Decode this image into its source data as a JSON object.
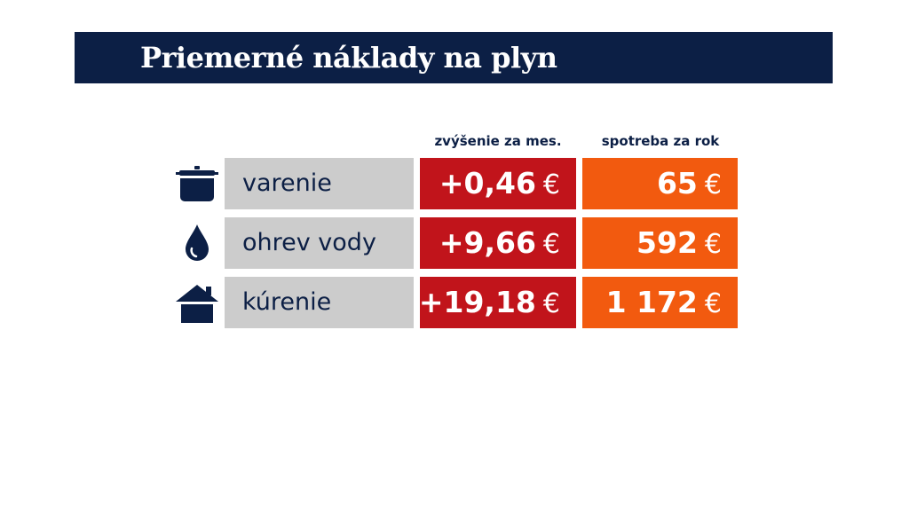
{
  "header": {
    "title": "Priemerné náklady na plyn"
  },
  "table": {
    "columns": [
      "zvýšenie za mes.",
      "spotreba za rok"
    ],
    "rows": [
      {
        "label": "varenie",
        "increase": "+0,46",
        "increase_unit": "€",
        "consumption": "65",
        "consumption_unit": "€"
      },
      {
        "label": "ohrev vody",
        "increase": "+9,66",
        "increase_unit": "€",
        "consumption": "592",
        "consumption_unit": "€"
      },
      {
        "label": "kúrenie",
        "increase": "+19,18",
        "increase_unit": "€",
        "consumption": "1 172",
        "consumption_unit": "€"
      }
    ]
  }
}
